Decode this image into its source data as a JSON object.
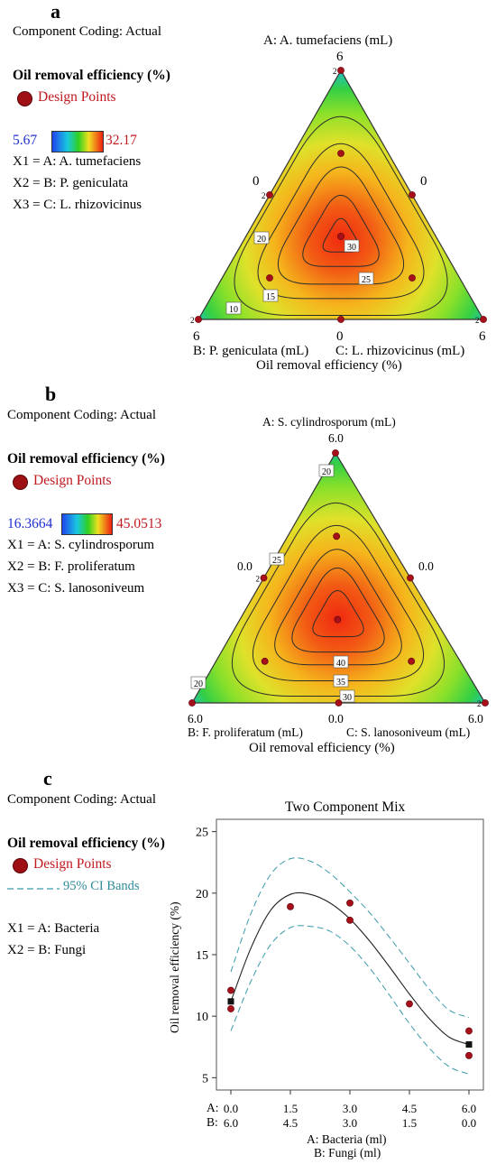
{
  "panels": [
    {
      "letter": "a",
      "coding": "Component Coding: Actual",
      "response": "Oil removal efficiency (%)",
      "design_points_label": "Design Points",
      "range_low": "5.67",
      "range_high": "32.17",
      "factors": [
        "X1 = A: A. tumefaciens",
        "X2 = B: P. geniculata",
        "X3 = C: L. rhizovicinus"
      ],
      "apex_title": "A: A. tumefaciens (mL)",
      "apex_value": "6",
      "left_edge_value": "0",
      "right_edge_value": "0",
      "bottom_left_value": "6",
      "bottom_mid_value": "0",
      "bottom_right_value": "6",
      "bottom_left_label": "B: P. geniculata (mL)",
      "bottom_right_label": "C: L. rhizovicinus (mL)",
      "xlabel": "Oil removal efficiency (%)"
    },
    {
      "letter": "b",
      "coding": "Component Coding: Actual",
      "response": "Oil removal efficiency (%)",
      "design_points_label": "Design Points",
      "range_low": "16.3664",
      "range_high": "45.0513",
      "factors": [
        "X1 = A: S. cylindrosporum",
        "X2 = B: F. proliferatum",
        "X3 = C: S. lanosoniveum"
      ],
      "apex_title": "A: S. cylindrosporum (mL)",
      "apex_value": "6.0",
      "left_edge_value": "0.0",
      "right_edge_value": "0.0",
      "bottom_left_value": "6.0",
      "bottom_mid_value": "0.0",
      "bottom_right_value": "6.0",
      "bottom_left_label": "B: F. proliferatum (mL)",
      "bottom_right_label": "C: S. lanosoniveum (mL)",
      "xlabel": "Oil removal efficiency (%)"
    },
    {
      "letter": "c",
      "coding": "Component Coding: Actual",
      "response": "Oil removal efficiency (%)",
      "design_points_label": "Design Points",
      "ci_label": "95% CI Bands",
      "factors": [
        "X1 = A: Bacteria",
        "X2 = B: Fungi"
      ]
    }
  ],
  "chart_data": [
    {
      "type": "heatmap",
      "subtype": "ternary-contour",
      "contour_levels": [
        10,
        15,
        20,
        25,
        30
      ],
      "color_range": [
        5.67,
        32.17
      ],
      "axes": [
        "A: A. tumefaciens (mL)",
        "B: P. geniculata (mL)",
        "C: L. rhizovicinus (mL)"
      ],
      "axis_range": [
        0,
        6
      ],
      "xlabel": "Oil removal efficiency (%)",
      "optimum_region": "center",
      "design_points": [
        {
          "a": 6,
          "b": 0,
          "c": 0
        },
        {
          "a": 0,
          "b": 6,
          "c": 0
        },
        {
          "a": 0,
          "b": 0,
          "c": 6
        },
        {
          "a": 3,
          "b": 3,
          "c": 0
        },
        {
          "a": 3,
          "b": 0,
          "c": 3
        },
        {
          "a": 0,
          "b": 3,
          "c": 3
        },
        {
          "a": 2,
          "b": 2,
          "c": 2
        },
        {
          "a": 4,
          "b": 1,
          "c": 1
        },
        {
          "a": 1,
          "b": 4,
          "c": 1
        },
        {
          "a": 1,
          "b": 1,
          "c": 4
        }
      ],
      "replicate_labels": [
        {
          "text": "2",
          "a": 6,
          "b": 0,
          "c": 0
        },
        {
          "text": "2",
          "a": 3,
          "b": 3,
          "c": 0
        },
        {
          "text": "2",
          "a": 0,
          "b": 6,
          "c": 0
        },
        {
          "text": "2",
          "a": 0,
          "b": 0,
          "c": 6
        }
      ]
    },
    {
      "type": "heatmap",
      "subtype": "ternary-contour",
      "contour_levels": [
        20,
        25,
        30,
        35,
        40
      ],
      "color_range": [
        16.3664,
        45.0513
      ],
      "axes": [
        "A: S. cylindrosporum (mL)",
        "B: F. proliferatum (mL)",
        "C: S. lanosoniveum (mL)"
      ],
      "axis_range": [
        0,
        6
      ],
      "xlabel": "Oil removal efficiency (%)",
      "optimum_region": "center",
      "design_points": [
        {
          "a": 6,
          "b": 0,
          "c": 0
        },
        {
          "a": 0,
          "b": 6,
          "c": 0
        },
        {
          "a": 0,
          "b": 0,
          "c": 6
        },
        {
          "a": 3,
          "b": 3,
          "c": 0
        },
        {
          "a": 3,
          "b": 0,
          "c": 3
        },
        {
          "a": 0,
          "b": 3,
          "c": 3
        },
        {
          "a": 2,
          "b": 2,
          "c": 2
        },
        {
          "a": 4,
          "b": 1,
          "c": 1
        },
        {
          "a": 1,
          "b": 4,
          "c": 1
        },
        {
          "a": 1,
          "b": 1,
          "c": 4
        }
      ],
      "replicate_labels": [
        {
          "text": "2",
          "a": 3,
          "b": 3,
          "c": 0
        },
        {
          "text": "2",
          "a": 0,
          "b": 0,
          "c": 6
        }
      ]
    },
    {
      "type": "line",
      "title": "Two Component Mix",
      "ylabel": "Oil removal efficiency (%)",
      "xlabel_lines": [
        "A: Bacteria (ml)",
        "B: Fungi (ml)"
      ],
      "ylim": [
        4,
        26
      ],
      "yticks": [
        5,
        10,
        15,
        20,
        25
      ],
      "x_a_ticks": [
        "0.0",
        "1.5",
        "3.0",
        "4.5",
        "6.0"
      ],
      "x_b_ticks": [
        "6.0",
        "4.5",
        "3.0",
        "1.5",
        "0.0"
      ],
      "x_label_prefix_a": "A:",
      "x_label_prefix_b": "B:",
      "xlim": [
        0,
        6
      ],
      "series": [
        {
          "name": "",
          "role": "fit",
          "x": [
            0,
            0.5,
            1,
            1.5,
            2,
            2.5,
            3,
            3.5,
            4,
            4.5,
            5,
            5.5,
            6
          ],
          "y": [
            11.2,
            15.5,
            18.6,
            19.9,
            19.9,
            19.2,
            17.9,
            16.1,
            14.0,
            11.8,
            9.8,
            8.3,
            7.7
          ]
        },
        {
          "name": "95% CI Bands",
          "role": "ci_upper",
          "x": [
            0,
            0.5,
            1,
            1.5,
            2,
            2.5,
            3,
            3.5,
            4,
            4.5,
            5,
            5.5,
            6
          ],
          "y": [
            13.6,
            18.3,
            21.5,
            22.8,
            22.6,
            21.6,
            20.1,
            18.4,
            16.4,
            14.3,
            12.2,
            10.5,
            9.9
          ]
        },
        {
          "name": "95% CI Bands",
          "role": "ci_lower",
          "x": [
            0,
            0.5,
            1,
            1.5,
            2,
            2.5,
            3,
            3.5,
            4,
            4.5,
            5,
            5.5,
            6
          ],
          "y": [
            8.8,
            12.8,
            15.8,
            17.2,
            17.3,
            16.9,
            15.7,
            13.9,
            11.7,
            9.4,
            7.4,
            5.9,
            5.3
          ]
        }
      ],
      "design_points": [
        {
          "x": 0,
          "y": 12.1
        },
        {
          "x": 0,
          "y": 10.6
        },
        {
          "x": 1.5,
          "y": 18.9
        },
        {
          "x": 3,
          "y": 19.2
        },
        {
          "x": 3,
          "y": 17.8
        },
        {
          "x": 4.5,
          "y": 11.0
        },
        {
          "x": 6,
          "y": 8.8
        },
        {
          "x": 6,
          "y": 6.8
        }
      ],
      "predicted_markers": [
        {
          "x": 0,
          "y": 11.2
        },
        {
          "x": 6,
          "y": 7.7
        }
      ]
    }
  ]
}
